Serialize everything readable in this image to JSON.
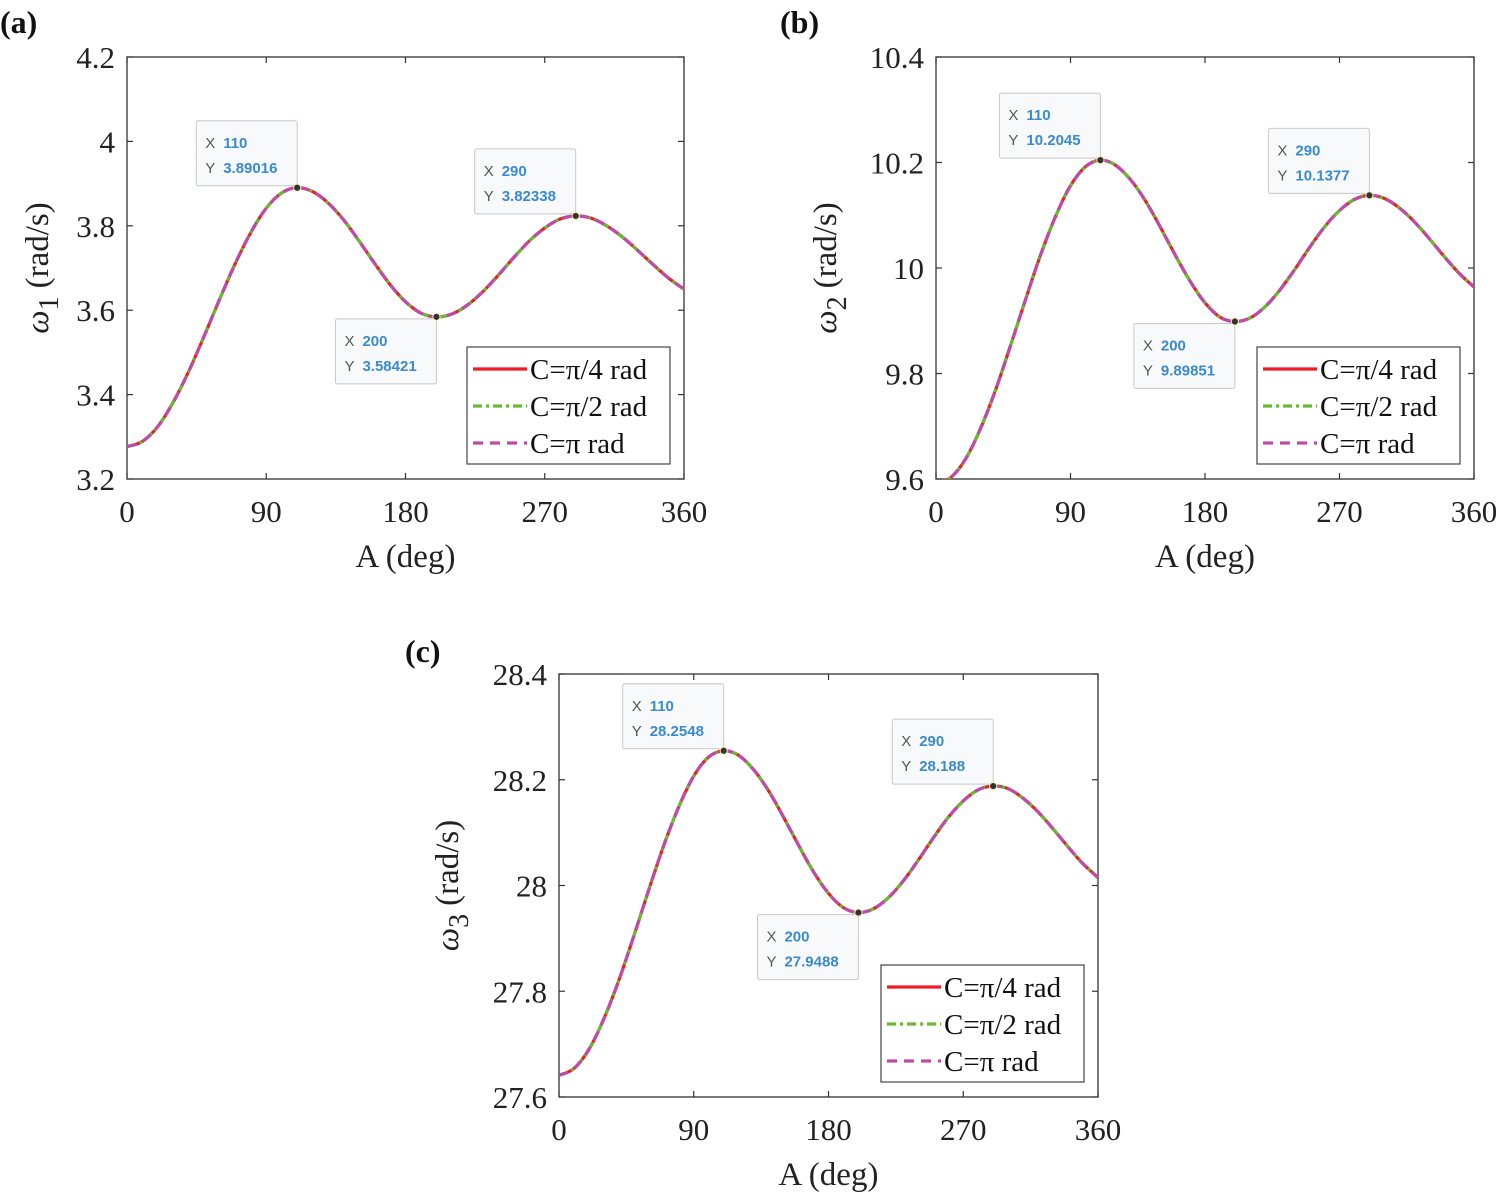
{
  "chart_data": [
    {
      "type": "line",
      "panel_label": "(a)",
      "xlabel": "A (deg)",
      "ylabel_symbol": "ω",
      "ylabel_subscript": "1",
      "ylabel_unit": "(rad/s)",
      "xlim": [
        0,
        360
      ],
      "ylim": [
        3.2,
        4.2
      ],
      "xticks": [
        "0",
        "90",
        "180",
        "270",
        "360"
      ],
      "yticks": [
        "3.2",
        "3.4",
        "3.6",
        "3.8",
        "4",
        "4.2"
      ],
      "grid": false,
      "legend_position": "bottom-right",
      "x": [
        0,
        10,
        20,
        30,
        40,
        50,
        60,
        70,
        80,
        90,
        100,
        110,
        120,
        130,
        140,
        150,
        160,
        170,
        180,
        190,
        200,
        210,
        220,
        230,
        240,
        250,
        260,
        270,
        280,
        290,
        300,
        310,
        320,
        330,
        340,
        350,
        360
      ],
      "series": [
        {
          "name": "C=π/4 rad",
          "color": "#ee1c25",
          "style": "solid",
          "values": [
            3.2767,
            3.289,
            3.325,
            3.383,
            3.456,
            3.54,
            3.627,
            3.711,
            3.784,
            3.842,
            3.878,
            3.8902,
            3.881,
            3.854,
            3.814,
            3.764,
            3.711,
            3.661,
            3.62,
            3.593,
            3.5842,
            3.591,
            3.612,
            3.644,
            3.683,
            3.725,
            3.764,
            3.795,
            3.816,
            3.8234,
            3.818,
            3.8,
            3.774,
            3.742,
            3.708,
            3.676,
            3.65
          ]
        },
        {
          "name": "C=π/2 rad",
          "color": "#66bb33",
          "style": "dashdot",
          "values": [
            3.2767,
            3.289,
            3.325,
            3.383,
            3.456,
            3.54,
            3.627,
            3.711,
            3.784,
            3.842,
            3.878,
            3.8902,
            3.881,
            3.854,
            3.814,
            3.764,
            3.711,
            3.661,
            3.62,
            3.593,
            3.5842,
            3.591,
            3.612,
            3.644,
            3.683,
            3.725,
            3.764,
            3.795,
            3.816,
            3.8234,
            3.818,
            3.8,
            3.774,
            3.742,
            3.708,
            3.676,
            3.65
          ]
        },
        {
          "name": "C=π rad",
          "color": "#c04aa8",
          "style": "dashed",
          "values": [
            3.2767,
            3.289,
            3.325,
            3.383,
            3.456,
            3.54,
            3.627,
            3.711,
            3.784,
            3.842,
            3.878,
            3.8902,
            3.881,
            3.854,
            3.814,
            3.764,
            3.711,
            3.661,
            3.62,
            3.593,
            3.5842,
            3.591,
            3.612,
            3.644,
            3.683,
            3.725,
            3.764,
            3.795,
            3.816,
            3.8234,
            3.818,
            3.8,
            3.774,
            3.742,
            3.708,
            3.676,
            3.65
          ]
        }
      ],
      "datatips": [
        {
          "x": 110,
          "y": 3.89016,
          "x_text": "110",
          "y_text": "3.89016",
          "placement": "above-left"
        },
        {
          "x": 200,
          "y": 3.58421,
          "x_text": "200",
          "y_text": "3.58421",
          "placement": "below-left"
        },
        {
          "x": 290,
          "y": 3.82338,
          "x_text": "290",
          "y_text": "3.82338",
          "placement": "above-left"
        }
      ]
    },
    {
      "type": "line",
      "panel_label": "(b)",
      "xlabel": "A (deg)",
      "ylabel_symbol": "ω",
      "ylabel_subscript": "2",
      "ylabel_unit": "(rad/s)",
      "xlim": [
        0,
        360
      ],
      "ylim": [
        9.6,
        10.4
      ],
      "xticks": [
        "0",
        "90",
        "180",
        "270",
        "360"
      ],
      "yticks": [
        "9.6",
        "9.8",
        "10",
        "10.2",
        "10.4"
      ],
      "grid": false,
      "legend_position": "bottom-right",
      "x": [
        0,
        10,
        20,
        30,
        40,
        50,
        60,
        70,
        80,
        90,
        100,
        110,
        120,
        130,
        140,
        150,
        160,
        170,
        180,
        190,
        200,
        210,
        220,
        230,
        240,
        250,
        260,
        270,
        280,
        290,
        300,
        310,
        320,
        330,
        340,
        350,
        360
      ],
      "series": [
        {
          "name": "C=π/4 rad",
          "color": "#ee1c25",
          "style": "solid",
          "values": [
            9.591,
            9.603,
            9.639,
            9.697,
            9.77,
            9.854,
            9.941,
            10.025,
            10.098,
            10.156,
            10.192,
            10.2045,
            10.195,
            10.168,
            10.128,
            10.078,
            10.025,
            9.975,
            9.934,
            9.907,
            9.8985,
            9.905,
            9.926,
            9.958,
            9.997,
            10.039,
            10.078,
            10.109,
            10.13,
            10.1377,
            10.132,
            10.114,
            10.088,
            10.056,
            10.022,
            9.99,
            9.964
          ]
        },
        {
          "name": "C=π/2 rad",
          "color": "#66bb33",
          "style": "dashdot",
          "values": [
            9.591,
            9.603,
            9.639,
            9.697,
            9.77,
            9.854,
            9.941,
            10.025,
            10.098,
            10.156,
            10.192,
            10.2045,
            10.195,
            10.168,
            10.128,
            10.078,
            10.025,
            9.975,
            9.934,
            9.907,
            9.8985,
            9.905,
            9.926,
            9.958,
            9.997,
            10.039,
            10.078,
            10.109,
            10.13,
            10.1377,
            10.132,
            10.114,
            10.088,
            10.056,
            10.022,
            9.99,
            9.964
          ]
        },
        {
          "name": "C=π rad",
          "color": "#c04aa8",
          "style": "dashed",
          "values": [
            9.591,
            9.603,
            9.639,
            9.697,
            9.77,
            9.854,
            9.941,
            10.025,
            10.098,
            10.156,
            10.192,
            10.2045,
            10.195,
            10.168,
            10.128,
            10.078,
            10.025,
            9.975,
            9.934,
            9.907,
            9.8985,
            9.905,
            9.926,
            9.958,
            9.997,
            10.039,
            10.078,
            10.109,
            10.13,
            10.1377,
            10.132,
            10.114,
            10.088,
            10.056,
            10.022,
            9.99,
            9.964
          ]
        }
      ],
      "datatips": [
        {
          "x": 110,
          "y": 10.2045,
          "x_text": "110",
          "y_text": "10.2045",
          "placement": "above-left"
        },
        {
          "x": 200,
          "y": 9.89851,
          "x_text": "200",
          "y_text": "9.89851",
          "placement": "below-left"
        },
        {
          "x": 290,
          "y": 10.1377,
          "x_text": "290",
          "y_text": "10.1377",
          "placement": "above-left"
        }
      ]
    },
    {
      "type": "line",
      "panel_label": "(c)",
      "xlabel": "A (deg)",
      "ylabel_symbol": "ω",
      "ylabel_subscript": "3",
      "ylabel_unit": "(rad/s)",
      "xlim": [
        0,
        360
      ],
      "ylim": [
        27.6,
        28.4
      ],
      "xticks": [
        "0",
        "90",
        "180",
        "270",
        "360"
      ],
      "yticks": [
        "27.6",
        "27.8",
        "28",
        "28.2",
        "28.4"
      ],
      "grid": false,
      "legend_position": "bottom-right",
      "x": [
        0,
        10,
        20,
        30,
        40,
        50,
        60,
        70,
        80,
        90,
        100,
        110,
        120,
        130,
        140,
        150,
        160,
        170,
        180,
        190,
        200,
        210,
        220,
        230,
        240,
        250,
        260,
        270,
        280,
        290,
        300,
        310,
        320,
        330,
        340,
        350,
        360
      ],
      "series": [
        {
          "name": "C=π/4 rad",
          "color": "#ee1c25",
          "style": "solid",
          "values": [
            27.641,
            27.654,
            27.69,
            27.748,
            27.821,
            27.905,
            27.992,
            28.076,
            28.149,
            28.207,
            28.243,
            28.2548,
            28.246,
            28.219,
            28.179,
            28.129,
            28.076,
            28.026,
            27.985,
            27.958,
            27.9488,
            27.956,
            27.977,
            28.009,
            28.048,
            28.09,
            28.129,
            28.16,
            28.181,
            28.188,
            28.183,
            28.165,
            28.139,
            28.107,
            28.073,
            28.041,
            28.015
          ]
        },
        {
          "name": "C=π/2 rad",
          "color": "#66bb33",
          "style": "dashdot",
          "values": [
            27.641,
            27.654,
            27.69,
            27.748,
            27.821,
            27.905,
            27.992,
            28.076,
            28.149,
            28.207,
            28.243,
            28.2548,
            28.246,
            28.219,
            28.179,
            28.129,
            28.076,
            28.026,
            27.985,
            27.958,
            27.9488,
            27.956,
            27.977,
            28.009,
            28.048,
            28.09,
            28.129,
            28.16,
            28.181,
            28.188,
            28.183,
            28.165,
            28.139,
            28.107,
            28.073,
            28.041,
            28.015
          ]
        },
        {
          "name": "C=π rad",
          "color": "#c04aa8",
          "style": "dashed",
          "values": [
            27.641,
            27.654,
            27.69,
            27.748,
            27.821,
            27.905,
            27.992,
            28.076,
            28.149,
            28.207,
            28.243,
            28.2548,
            28.246,
            28.219,
            28.179,
            28.129,
            28.076,
            28.026,
            27.985,
            27.958,
            27.9488,
            27.956,
            27.977,
            28.009,
            28.048,
            28.09,
            28.129,
            28.16,
            28.181,
            28.188,
            28.183,
            28.165,
            28.139,
            28.107,
            28.073,
            28.041,
            28.015
          ]
        }
      ],
      "datatips": [
        {
          "x": 110,
          "y": 28.2548,
          "x_text": "110",
          "y_text": "28.2548",
          "placement": "above-left"
        },
        {
          "x": 200,
          "y": 27.9488,
          "x_text": "200",
          "y_text": "27.9488",
          "placement": "below-left"
        },
        {
          "x": 290,
          "y": 28.188,
          "x_text": "290",
          "y_text": "28.188",
          "placement": "above-left"
        }
      ]
    }
  ],
  "datatip_keys": {
    "x": "X",
    "y": "Y"
  }
}
